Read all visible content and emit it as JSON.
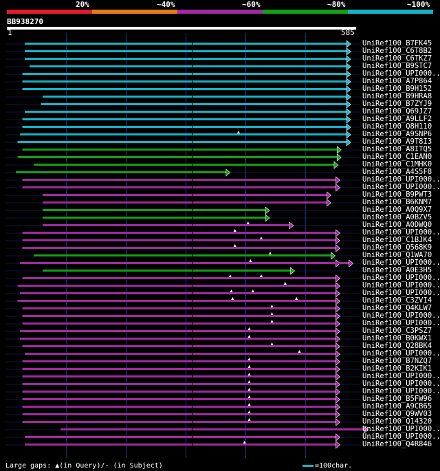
{
  "colors": {
    "c20": "#e6182e",
    "c40": "#e87a18",
    "c60": "#a02aa0",
    "c80": "#14a014",
    "c100": "#14b4c8",
    "bg": "#000000",
    "guide": "#2a3a8a"
  },
  "percent_labels": [
    "20%",
    "~40%",
    "~60%",
    "~80%",
    "~100%"
  ],
  "query": {
    "id": "BB938270",
    "start": "1",
    "end": "585",
    "length": 585
  },
  "chart_data": {
    "type": "alignment_overview",
    "query_length": 585,
    "hits": [
      {
        "name": "UniRef100_B7FK45",
        "cls": "c100",
        "start": 30,
        "end": 576,
        "gaps": []
      },
      {
        "name": "UniRef100_C6T8B2",
        "cls": "c100",
        "start": 30,
        "end": 576,
        "gaps": []
      },
      {
        "name": "UniRef100_C6TKZ7",
        "cls": "c100",
        "start": 30,
        "end": 576,
        "gaps": []
      },
      {
        "name": "UniRef100_B9STC7",
        "cls": "c100",
        "start": 38,
        "end": 576,
        "gaps": []
      },
      {
        "name": "UniRef100_UPI000...",
        "cls": "c100",
        "start": 26,
        "end": 576,
        "gaps": []
      },
      {
        "name": "UniRef100_A7P864",
        "cls": "c100",
        "start": 26,
        "end": 576,
        "gaps": []
      },
      {
        "name": "UniRef100_B9H152",
        "cls": "c100",
        "start": 26,
        "end": 576,
        "gaps": []
      },
      {
        "name": "UniRef100_B9HRA8",
        "cls": "c100",
        "start": 60,
        "end": 576,
        "gaps": []
      },
      {
        "name": "UniRef100_B7ZYJ9",
        "cls": "c100",
        "start": 57,
        "end": 576,
        "gaps": []
      },
      {
        "name": "UniRef100_Q69JZ7",
        "cls": "c100",
        "start": 30,
        "end": 576,
        "gaps": []
      },
      {
        "name": "UniRef100_A9LLF2",
        "cls": "c100",
        "start": 26,
        "end": 576,
        "gaps": []
      },
      {
        "name": "UniRef100_Q8H110",
        "cls": "c100",
        "start": 26,
        "end": 576,
        "gaps": []
      },
      {
        "name": "UniRef100_A9SNP6",
        "cls": "c100",
        "start": 22,
        "end": 576,
        "gaps": [
          388
        ]
      },
      {
        "name": "UniRef100_A9T8I3",
        "cls": "c100",
        "start": 18,
        "end": 576,
        "gaps": []
      },
      {
        "name": "UniRef100_A8ITQ5",
        "cls": "c80",
        "start": 26,
        "end": 560,
        "gaps": []
      },
      {
        "name": "UniRef100_C1EAN0",
        "cls": "c80",
        "start": 18,
        "end": 560,
        "gaps": []
      },
      {
        "name": "UniRef100_C1MHK0",
        "cls": "c80",
        "start": 45,
        "end": 555,
        "gaps": []
      },
      {
        "name": "UniRef100_A4S5F8",
        "cls": "c80",
        "start": 15,
        "end": 374,
        "gaps": []
      },
      {
        "name": "UniRef100_UPI000...",
        "cls": "c60",
        "start": 26,
        "end": 558,
        "gaps": []
      },
      {
        "name": "UniRef100_UPI000...",
        "cls": "c60",
        "start": 26,
        "end": 558,
        "gaps": []
      },
      {
        "name": "UniRef100_B9PWT3",
        "cls": "c60",
        "start": 60,
        "end": 543,
        "gaps": []
      },
      {
        "name": "UniRef100_B6KNM7",
        "cls": "c60",
        "start": 60,
        "end": 543,
        "gaps": []
      },
      {
        "name": "UniRef100_A0Q9X7",
        "cls": "c80",
        "start": 60,
        "end": 440,
        "gaps": []
      },
      {
        "name": "UniRef100_A0BZV5",
        "cls": "c80",
        "start": 60,
        "end": 440,
        "gaps": []
      },
      {
        "name": "UniRef100_A0DWQ0",
        "cls": "c60",
        "start": 60,
        "end": 480,
        "gaps": [
          404
        ]
      },
      {
        "name": "UniRef100_UPI000...",
        "cls": "c60",
        "start": 26,
        "end": 558,
        "gaps": [
          382
        ]
      },
      {
        "name": "UniRef100_C1BJK4",
        "cls": "c60",
        "start": 26,
        "end": 558,
        "gaps": [
          426
        ]
      },
      {
        "name": "UniRef100_Q568K9",
        "cls": "c60",
        "start": 26,
        "end": 558,
        "gaps": [
          382
        ]
      },
      {
        "name": "UniRef100_Q1WA70",
        "cls": "c80",
        "start": 45,
        "end": 550,
        "gaps": [
          441
        ]
      },
      {
        "name": "UniRef100_UPI000...",
        "cls": "c60",
        "start": 22,
        "end": 558,
        "gaps": [
          408
        ]
      },
      {
        "name": "UniRef100_A0E3H5",
        "cls": "c80",
        "start": 60,
        "end": 482,
        "gaps": []
      },
      {
        "name": "UniRef100_UPI000...",
        "cls": "c60",
        "start": 26,
        "end": 558,
        "gaps": [
          374,
          426
        ]
      },
      {
        "name": "UniRef100_UPI000...",
        "cls": "c60",
        "start": 18,
        "end": 558,
        "gaps": [
          466
        ]
      },
      {
        "name": "UniRef100_UPI000...",
        "cls": "c60",
        "start": 22,
        "end": 558,
        "gaps": [
          376,
          412
        ]
      },
      {
        "name": "UniRef100_C3ZVI4",
        "cls": "c60",
        "start": 18,
        "end": 558,
        "gaps": [
          378,
          485
        ]
      },
      {
        "name": "UniRef100_Q4KLW7",
        "cls": "c60",
        "start": 26,
        "end": 558,
        "gaps": [
          444
        ]
      },
      {
        "name": "UniRef100_UPI000...",
        "cls": "c60",
        "start": 26,
        "end": 558,
        "gaps": [
          444
        ]
      },
      {
        "name": "UniRef100_UPI000...",
        "cls": "c60",
        "start": 26,
        "end": 558,
        "gaps": [
          444
        ]
      },
      {
        "name": "UniRef100_C3PSZ7",
        "cls": "c60",
        "start": 22,
        "end": 558,
        "gaps": [
          406
        ]
      },
      {
        "name": "UniRef100_B0KWX1",
        "cls": "c60",
        "start": 22,
        "end": 558,
        "gaps": [
          406
        ]
      },
      {
        "name": "UniRef100_Q28BK4",
        "cls": "c60",
        "start": 26,
        "end": 558,
        "gaps": [
          444
        ]
      },
      {
        "name": "UniRef100_UPI000...",
        "cls": "c60",
        "start": 30,
        "end": 558,
        "gaps": [
          490
        ]
      },
      {
        "name": "UniRef100_B7NZQ7",
        "cls": "c60",
        "start": 26,
        "end": 558,
        "gaps": [
          406
        ]
      },
      {
        "name": "UniRef100_B2KIK1",
        "cls": "c60",
        "start": 26,
        "end": 558,
        "gaps": [
          406
        ]
      },
      {
        "name": "UniRef100_UPI000...",
        "cls": "c60",
        "start": 26,
        "end": 558,
        "gaps": [
          406
        ]
      },
      {
        "name": "UniRef100_UPI000...",
        "cls": "c60",
        "start": 26,
        "end": 558,
        "gaps": [
          406
        ]
      },
      {
        "name": "UniRef100_UPI000...",
        "cls": "c60",
        "start": 26,
        "end": 558,
        "gaps": [
          406
        ]
      },
      {
        "name": "UniRef100_B5FW96",
        "cls": "c60",
        "start": 26,
        "end": 558,
        "gaps": [
          406
        ]
      },
      {
        "name": "UniRef100_A9CB65",
        "cls": "c60",
        "start": 26,
        "end": 558,
        "gaps": [
          406
        ]
      },
      {
        "name": "UniRef100_Q9WV03",
        "cls": "c60",
        "start": 26,
        "end": 558,
        "gaps": [
          406
        ]
      },
      {
        "name": "UniRef100_Q14320",
        "cls": "c60",
        "start": 26,
        "end": 558,
        "gaps": [
          406
        ]
      },
      {
        "name": "UniRef100_UPI000...",
        "cls": "c60",
        "start": 90,
        "end": 605,
        "gaps": []
      },
      {
        "name": "UniRef100_UPI000...",
        "cls": "c60",
        "start": 30,
        "end": 558,
        "gaps": []
      },
      {
        "name": "UniRef100_Q4R846",
        "cls": "c60",
        "start": 30,
        "end": 558,
        "gaps": [
          398
        ]
      }
    ],
    "extra_segments": [
      {
        "row": 29,
        "cls": "c60",
        "start": 490,
        "end": 580
      }
    ],
    "guides": [
      100,
      200,
      300,
      400,
      500
    ]
  },
  "legend": {
    "text": "Large gaps: ▲(in Query)/- (in Subject)",
    "scale": "=100char."
  }
}
